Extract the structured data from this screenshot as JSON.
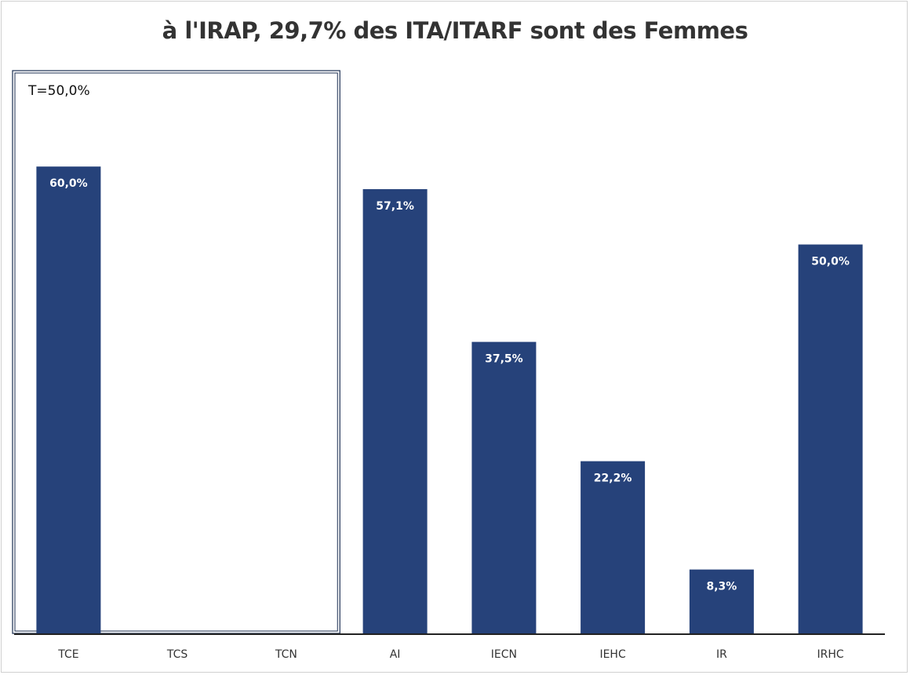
{
  "chart_data": {
    "type": "bar",
    "title": "à l'IRAP, 29,7% des ITA/ITARF sont des Femmes",
    "categories": [
      "TCE",
      "TCS",
      "TCN",
      "AI",
      "IECN",
      "IEHC",
      "IR",
      "IRHC"
    ],
    "values": [
      60.0,
      null,
      null,
      57.1,
      37.5,
      22.2,
      8.3,
      50.0
    ],
    "value_labels": [
      "60,0%",
      "",
      "",
      "57,1%",
      "37,5%",
      "22,2%",
      "8,3%",
      "50,0%"
    ],
    "ylim": [
      0,
      100
    ],
    "xlabel": "",
    "ylabel": "",
    "grid": false,
    "bar_color": "#26427a",
    "annotation": {
      "text": "T=50,0%",
      "group": [
        "TCE",
        "TCS",
        "TCN"
      ]
    }
  }
}
